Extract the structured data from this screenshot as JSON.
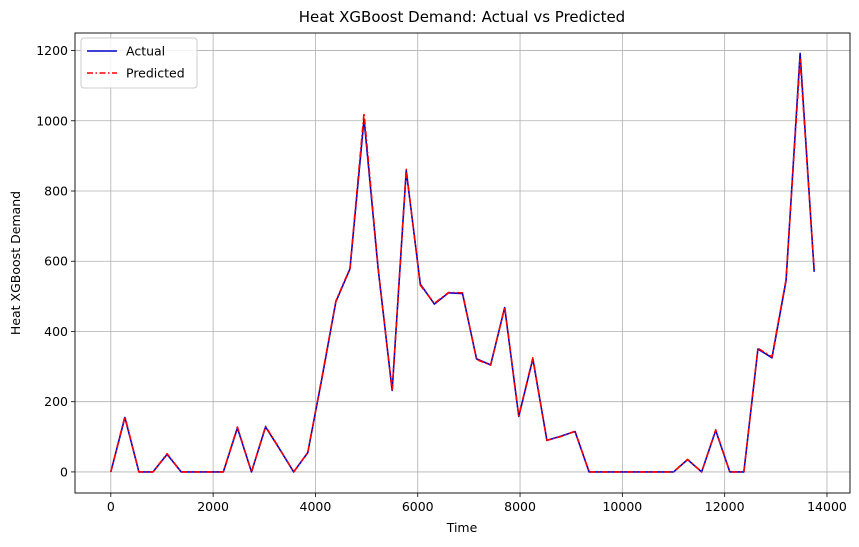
{
  "chart_data": {
    "type": "line",
    "title": "Heat XGBoost Demand: Actual vs Predicted",
    "xlabel": "Time",
    "ylabel": "Heat XGBoost Demand",
    "xlim": [
      -700,
      14450
    ],
    "ylim": [
      -60,
      1250
    ],
    "xticks": [
      0,
      2000,
      4000,
      6000,
      8000,
      10000,
      12000,
      14000
    ],
    "yticks": [
      0,
      200,
      400,
      600,
      800,
      1000,
      1200
    ],
    "grid": true,
    "legend_position": "upper-left",
    "x": [
      0,
      275,
      550,
      825,
      1100,
      1375,
      1650,
      1925,
      2200,
      2475,
      2750,
      3025,
      3300,
      3575,
      3850,
      4125,
      4400,
      4675,
      4950,
      5225,
      5500,
      5775,
      6050,
      6325,
      6600,
      6875,
      7150,
      7425,
      7700,
      7975,
      8250,
      8525,
      8800,
      9075,
      9350,
      9625,
      9900,
      10175,
      10450,
      10725,
      11000,
      11275,
      11550,
      11825,
      12100,
      12375,
      12650,
      12925,
      13200,
      13475,
      13750
    ],
    "series": [
      {
        "name": "Actual",
        "color": "#0000cc",
        "style": "solid",
        "values": [
          0,
          155,
          0,
          0,
          50,
          0,
          0,
          0,
          0,
          125,
          0,
          128,
          65,
          0,
          55,
          265,
          485,
          578,
          1005,
          580,
          232,
          858,
          535,
          478,
          510,
          508,
          322,
          305,
          468,
          158,
          322,
          90,
          102,
          115,
          0,
          0,
          0,
          0,
          0,
          0,
          0,
          35,
          0,
          118,
          0,
          0,
          350,
          325,
          545,
          1192,
          570
        ]
      },
      {
        "name": "Predicted",
        "color": "#ff0000",
        "style": "dashdot",
        "values": [
          0,
          158,
          0,
          0,
          52,
          0,
          0,
          0,
          0,
          128,
          0,
          130,
          66,
          0,
          55,
          268,
          487,
          580,
          1022,
          582,
          230,
          862,
          532,
          480,
          511,
          510,
          320,
          304,
          470,
          160,
          325,
          90,
          101,
          116,
          0,
          0,
          0,
          0,
          0,
          0,
          0,
          36,
          0,
          120,
          0,
          0,
          352,
          328,
          548,
          1175,
          575
        ]
      }
    ]
  }
}
